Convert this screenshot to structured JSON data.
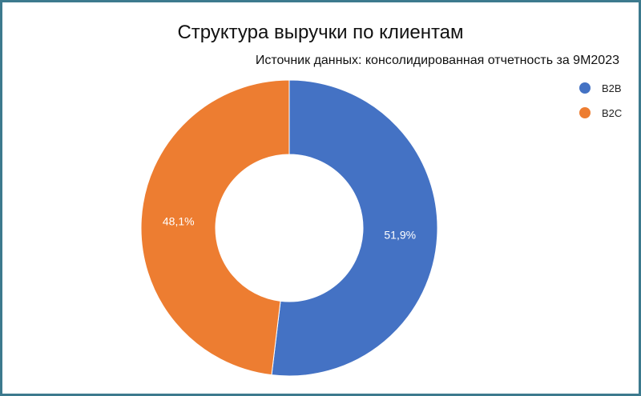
{
  "chart_data": {
    "type": "pie",
    "donut": true,
    "title": "Структура выручки по клиентам",
    "subtitle": "Источник данных: консолидированная отчетность за 9M2023",
    "labels": [
      "B2B",
      "B2C"
    ],
    "values": [
      51.9,
      48.1
    ],
    "value_labels": [
      "51,9%",
      "48,1%"
    ],
    "colors": [
      "#4472c4",
      "#ed7d31"
    ],
    "legend_position": "top-right",
    "start_angle": "top, clockwise"
  }
}
